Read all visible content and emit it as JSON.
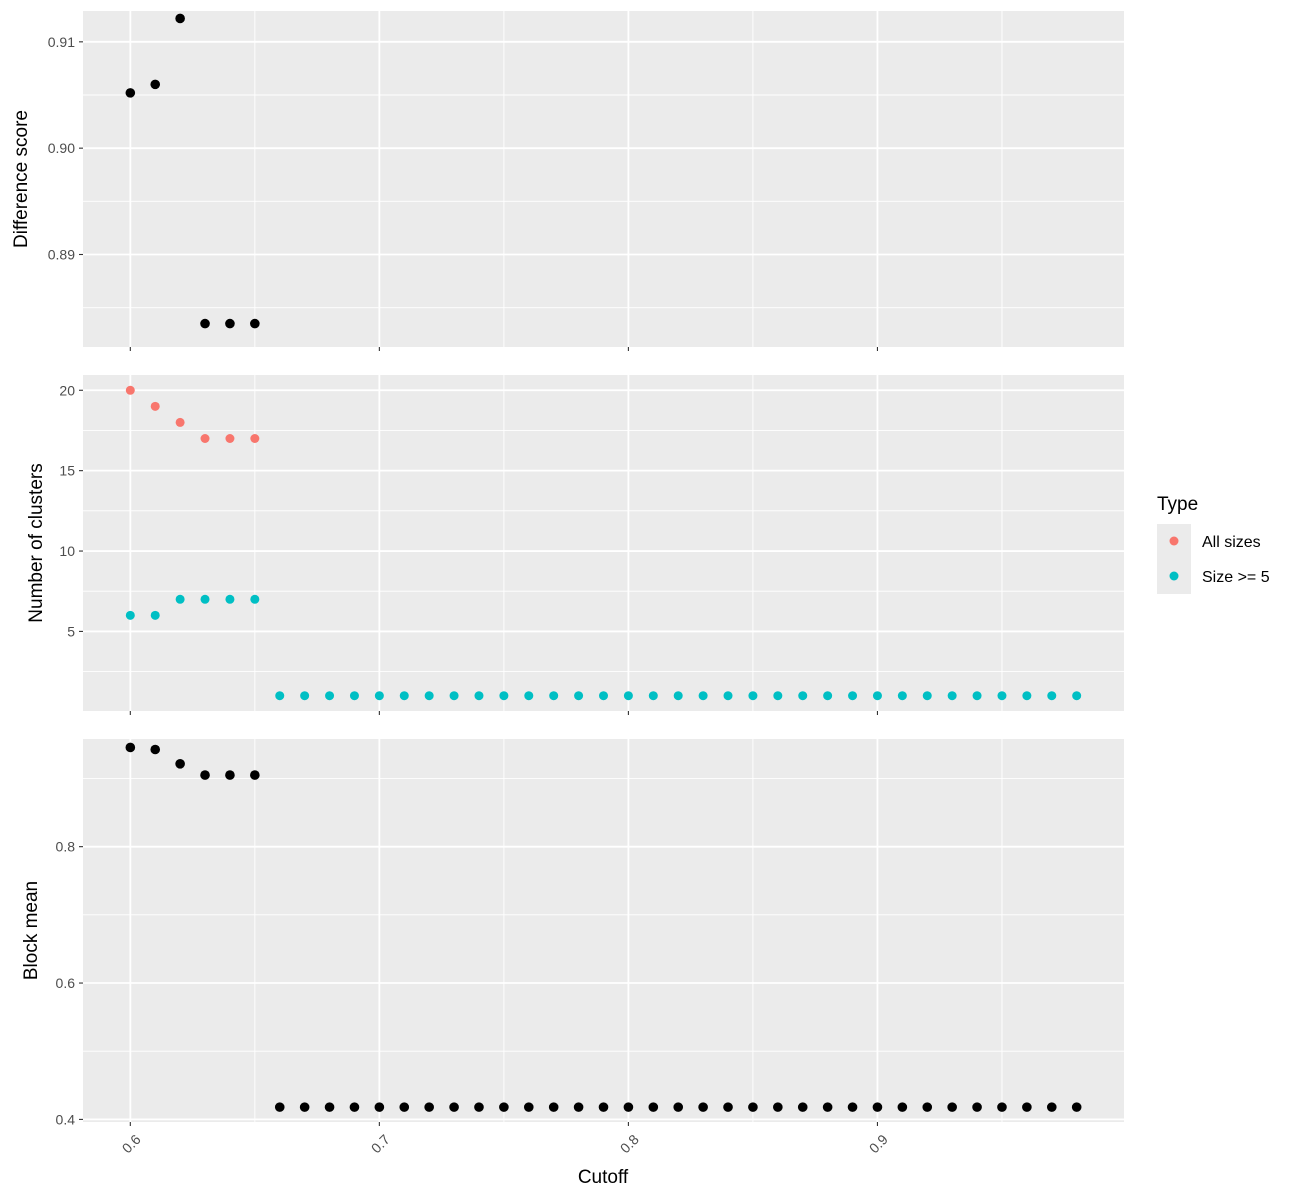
{
  "chart_data": {
    "type": "scatter",
    "x_label": "Cutoff",
    "x_range": [
      0.581,
      0.999
    ],
    "x_ticks": [
      0.6,
      0.7,
      0.8,
      0.9
    ],
    "x_tick_labels": [
      "0.6",
      "0.7",
      "0.8",
      "0.9"
    ],
    "x_values": [
      0.6,
      0.61,
      0.62,
      0.63,
      0.64,
      0.65,
      0.66,
      0.67,
      0.68,
      0.69,
      0.7,
      0.71,
      0.72,
      0.73,
      0.74,
      0.75,
      0.76,
      0.77,
      0.78,
      0.79,
      0.8,
      0.81,
      0.82,
      0.83,
      0.84,
      0.85,
      0.86,
      0.87,
      0.88,
      0.89,
      0.9,
      0.91,
      0.92,
      0.93,
      0.94,
      0.95,
      0.96,
      0.97,
      0.98
    ],
    "grid": true,
    "legend": {
      "title": "Type",
      "position": "right",
      "entries": [
        {
          "label": "All sizes",
          "color": "#F8766D"
        },
        {
          "label": "Size >= 5",
          "color": "#00BFC4"
        }
      ]
    },
    "panels": [
      {
        "ylabel": "Difference score",
        "ylim": [
          0.8813,
          0.9129
        ],
        "yticks": [
          0.89,
          0.9,
          0.91
        ],
        "ytick_labels": [
          "0.89",
          "0.90",
          "0.91"
        ],
        "series": [
          {
            "color": "#000000",
            "x": [
              0.6,
              0.61,
              0.62,
              0.63,
              0.64,
              0.65
            ],
            "y": [
              0.9052,
              0.906,
              0.9122,
              0.8835,
              0.8835,
              0.8835
            ]
          }
        ]
      },
      {
        "ylabel": "Number of clusters",
        "ylim": [
          0.05,
          20.95
        ],
        "yticks": [
          5,
          10,
          15,
          20
        ],
        "ytick_labels": [
          "5",
          "10",
          "15",
          "20"
        ],
        "series": [
          {
            "name": "All sizes",
            "color": "#F8766D",
            "x": [
              0.6,
              0.61,
              0.62,
              0.63,
              0.64,
              0.65
            ],
            "y": [
              20,
              19,
              18,
              17,
              17,
              17
            ]
          },
          {
            "name": "Size >= 5",
            "color": "#00BFC4",
            "x": [
              0.6,
              0.61,
              0.62,
              0.63,
              0.64,
              0.65,
              0.66,
              0.67,
              0.68,
              0.69,
              0.7,
              0.71,
              0.72,
              0.73,
              0.74,
              0.75,
              0.76,
              0.77,
              0.78,
              0.79,
              0.8,
              0.81,
              0.82,
              0.83,
              0.84,
              0.85,
              0.86,
              0.87,
              0.88,
              0.89,
              0.9,
              0.91,
              0.92,
              0.93,
              0.94,
              0.95,
              0.96,
              0.97,
              0.98
            ],
            "y": [
              6,
              6,
              7,
              7,
              7,
              7,
              1,
              1,
              1,
              1,
              1,
              1,
              1,
              1,
              1,
              1,
              1,
              1,
              1,
              1,
              1,
              1,
              1,
              1,
              1,
              1,
              1,
              1,
              1,
              1,
              1,
              1,
              1,
              1,
              1,
              1,
              1,
              1,
              1
            ]
          }
        ]
      },
      {
        "ylabel": "Block mean",
        "ylim": [
          0.3962,
          0.9579
        ],
        "yticks": [
          0.4,
          0.6,
          0.8
        ],
        "ytick_labels": [
          "0.4",
          "0.6",
          "0.8"
        ],
        "series": [
          {
            "color": "#000000",
            "x": [
              0.6,
              0.61,
              0.62,
              0.63,
              0.64,
              0.65,
              0.66,
              0.67,
              0.68,
              0.69,
              0.7,
              0.71,
              0.72,
              0.73,
              0.74,
              0.75,
              0.76,
              0.77,
              0.78,
              0.79,
              0.8,
              0.81,
              0.82,
              0.83,
              0.84,
              0.85,
              0.86,
              0.87,
              0.88,
              0.89,
              0.9,
              0.91,
              0.92,
              0.93,
              0.94,
              0.95,
              0.96,
              0.97,
              0.98
            ],
            "y": [
              0.9455,
              0.9425,
              0.9215,
              0.905,
              0.905,
              0.905,
              0.418,
              0.418,
              0.418,
              0.418,
              0.418,
              0.418,
              0.418,
              0.418,
              0.418,
              0.418,
              0.418,
              0.418,
              0.418,
              0.418,
              0.418,
              0.418,
              0.418,
              0.418,
              0.418,
              0.418,
              0.418,
              0.418,
              0.418,
              0.418,
              0.418,
              0.418,
              0.418,
              0.418,
              0.418,
              0.418,
              0.418,
              0.418,
              0.418
            ]
          }
        ]
      }
    ]
  }
}
